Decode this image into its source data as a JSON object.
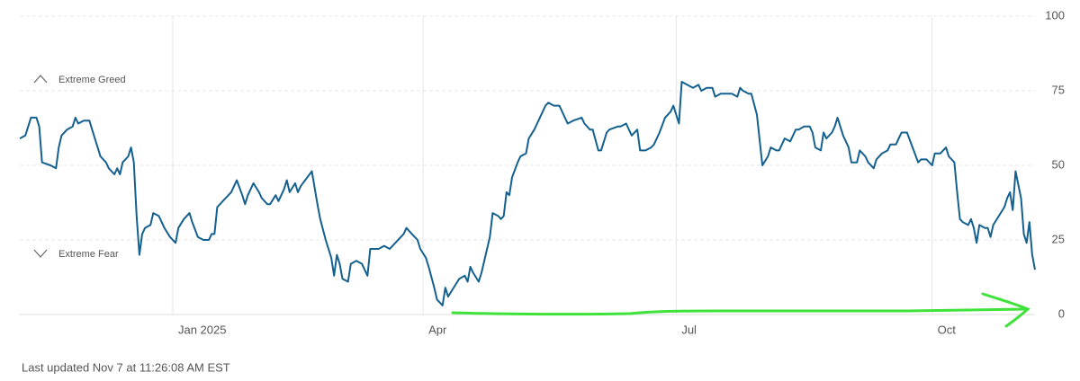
{
  "chart_data": {
    "type": "line",
    "annotations": [
      "Extreme Greed",
      "Extreme Fear"
    ],
    "footer": "Last updated Nov 7 at 11:26:08 AM EST",
    "color": "#14608f",
    "grid": true,
    "xlim": [
      -55,
      310
    ],
    "xticks": [
      {
        "value": 0,
        "label": "Jan 2025"
      },
      {
        "value": 90,
        "label": "Apr"
      },
      {
        "value": 181,
        "label": "Jul"
      },
      {
        "value": 273,
        "label": "Oct"
      }
    ],
    "ylim": [
      0,
      100
    ],
    "yticks": [
      0,
      25,
      50,
      75,
      100
    ],
    "x": [
      -55,
      -53,
      -51,
      -49,
      -48,
      -47,
      -44,
      -42,
      -41,
      -40,
      -38,
      -36,
      -35,
      -34,
      -32,
      -30,
      -28,
      -26,
      -24,
      -23,
      -21,
      -20,
      -19,
      -18,
      -16,
      -15,
      -14,
      -13,
      -12,
      -11,
      -10,
      -8,
      -7,
      -5,
      -3,
      -1,
      1,
      2,
      4,
      6,
      7,
      9,
      11,
      13,
      14,
      15,
      16,
      18,
      21,
      23,
      25,
      26,
      27,
      29,
      31,
      32,
      34,
      35,
      37,
      38,
      40,
      41,
      42,
      44,
      45,
      46,
      50,
      52,
      53,
      55,
      57,
      58,
      59,
      60,
      61,
      63,
      64,
      66,
      68,
      70,
      71,
      73,
      74,
      76,
      78,
      80,
      83,
      84,
      86,
      88,
      89,
      91,
      92,
      94,
      95,
      96,
      97,
      98,
      99,
      101,
      103,
      105,
      106,
      107,
      108,
      110,
      111,
      113,
      114,
      115,
      117,
      118,
      119,
      120,
      121,
      122,
      124,
      125,
      127,
      128,
      130,
      131,
      132,
      134,
      135,
      137,
      139,
      140,
      141,
      142,
      144,
      147,
      148,
      150,
      151,
      153,
      154,
      156,
      157,
      160,
      161,
      163,
      165,
      167,
      168,
      170,
      172,
      173,
      175,
      177,
      179,
      180,
      182,
      183,
      185,
      187,
      189,
      190,
      192,
      194,
      195,
      197,
      199,
      201,
      203,
      204,
      205,
      207,
      208,
      210,
      212,
      214,
      215,
      217,
      218,
      220,
      222,
      224,
      225,
      227,
      229,
      230,
      231,
      233,
      234,
      235,
      237,
      238,
      239,
      241,
      243,
      244,
      246,
      247,
      249,
      250,
      252,
      253,
      255,
      257,
      258,
      260,
      261,
      262,
      264,
      266,
      268,
      269,
      271,
      273,
      274,
      276,
      278,
      279,
      281,
      282,
      283,
      284,
      286,
      287,
      288,
      289,
      290,
      292,
      293,
      294,
      295,
      297,
      299,
      300,
      301,
      302,
      303,
      305,
      306,
      307,
      308,
      309,
      310
    ],
    "values": [
      59,
      60,
      66,
      66,
      63,
      51,
      50,
      49,
      56,
      60,
      62,
      63,
      66,
      64,
      65,
      65,
      59,
      53,
      51,
      49,
      47,
      49,
      47,
      51,
      53,
      56,
      51,
      33,
      20,
      27,
      29,
      30,
      34,
      33,
      29,
      26,
      24,
      29,
      32,
      34,
      31,
      26,
      25,
      25,
      27,
      27,
      36,
      38,
      41,
      45,
      40,
      37,
      40,
      44,
      41,
      39,
      37,
      37,
      40,
      38,
      42,
      45,
      41,
      44,
      41,
      43,
      48,
      37,
      32,
      25,
      19,
      13,
      20,
      17,
      12,
      11,
      17,
      18,
      17,
      13,
      22,
      22,
      22,
      23,
      22,
      24,
      27,
      29,
      27,
      25,
      22,
      19,
      16,
      9,
      5,
      4,
      3,
      9,
      6,
      9,
      12,
      13,
      11,
      16,
      14,
      11,
      14,
      22,
      26,
      34,
      33,
      32,
      33,
      41,
      40,
      46,
      51,
      53,
      54,
      59,
      62,
      64,
      66,
      70,
      71,
      70,
      70,
      68,
      66,
      64,
      65,
      66,
      64,
      62,
      62,
      55,
      55,
      61,
      62,
      63,
      63,
      64,
      60,
      62,
      55,
      55,
      56,
      57,
      61,
      66,
      68,
      70,
      64,
      78,
      77,
      76,
      77,
      75,
      76,
      76,
      73,
      74,
      74,
      74,
      73,
      76,
      75,
      74,
      74,
      67,
      50,
      53,
      56,
      55,
      55,
      59,
      58,
      62,
      62,
      63,
      63,
      61,
      56,
      55,
      61,
      59,
      61,
      63,
      66,
      60,
      56,
      51,
      51,
      55,
      53,
      51,
      49,
      52,
      54,
      55,
      57,
      57,
      59,
      61,
      61,
      56,
      51,
      52,
      52,
      50,
      54,
      54,
      56,
      53,
      51,
      41,
      32,
      31,
      30,
      32,
      29,
      24,
      30,
      29,
      29,
      26,
      30,
      33,
      36,
      39,
      41,
      35,
      48,
      39,
      27,
      24,
      31,
      20,
      15
    ]
  }
}
